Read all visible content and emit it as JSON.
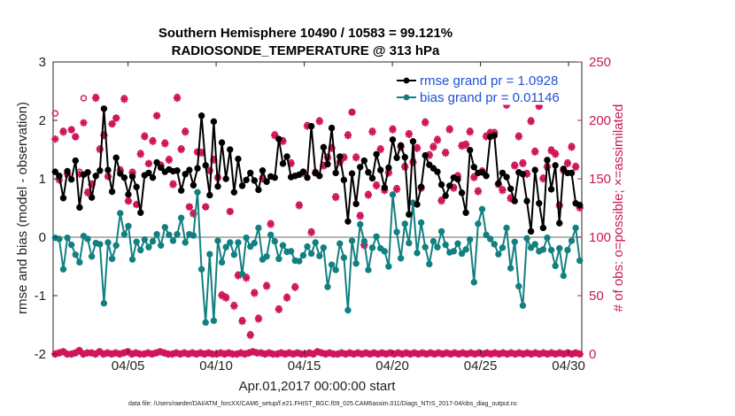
{
  "chart_data": {
    "type": "line",
    "title": [
      "Southern Hemisphere 10490 / 10583 = 99.121%",
      "RADIOSONDE_TEMPERATURE @ 313 hPa"
    ],
    "xlabel": "Apr.01,2017 00:00:00 start",
    "ylabel_left": "rmse and bias (model - observation)",
    "ylabel_right": "# of obs: o=possible; ×=assimilated",
    "footer": "data file: /Users/raeder/DAI/ATM_forcXX/CAM6_setup/f.e21.FHIST_BGC.f09_025.CAM6assim.011/Diags_NTrS_2017-04/obs_diag_output.nc",
    "x_range": [
      0.75,
      30.75
    ],
    "ylim_left": [
      -2,
      3
    ],
    "ylim_right": [
      0,
      250
    ],
    "x_ticks": [
      {
        "x": 5,
        "label": "04/05"
      },
      {
        "x": 10,
        "label": "04/10"
      },
      {
        "x": 15,
        "label": "04/15"
      },
      {
        "x": 20,
        "label": "04/20"
      },
      {
        "x": 25,
        "label": "04/25"
      },
      {
        "x": 30,
        "label": "04/30"
      }
    ],
    "y_ticks_left": [
      -2,
      -1,
      0,
      1,
      2,
      3
    ],
    "y_ticks_right": [
      0,
      50,
      100,
      150,
      200,
      250
    ],
    "colors": {
      "rmse": "#000000",
      "bias": "#128080",
      "obs": "#d0155a",
      "zero_line": "#b4b4b4",
      "legend_text": "#1f4fd9"
    },
    "legend": [
      {
        "key": "rmse",
        "label": "rmse grand pr = 1.0928"
      },
      {
        "key": "bias",
        "label": "bias grand pr = 0.01146"
      }
    ],
    "series": [
      {
        "name": "rmse",
        "values": [
          1.12,
          1.05,
          0.67,
          1.13,
          0.99,
          1.31,
          0.51,
          1.07,
          1.11,
          0.68,
          1.05,
          1.14,
          2.2,
          1.15,
          0.78,
          1.36,
          1.09,
          1.02,
          0.73,
          1.04,
          0.86,
          0.42,
          1.06,
          1.1,
          1.02,
          1.28,
          1.19,
          1.12,
          1.16,
          1.13,
          1.14,
          0.8,
          1.08,
          1.15,
          0.89,
          1.18,
          2.08,
          1.23,
          0.72,
          1.98,
          0.87,
          1.62,
          1.0,
          1.5,
          0.77,
          1.34,
          0.88,
          0.98,
          1.1,
          0.97,
          0.81,
          1.14,
          0.95,
          1.04,
          1.02,
          1.68,
          1.26,
          1.38,
          1.03,
          1.05,
          1.07,
          1.12,
          1.02,
          1.9,
          1.1,
          1.05,
          1.54,
          1.25,
          1.87,
          1.1,
          1.38,
          0.98,
          0.27,
          1.09,
          0.57,
          1.2,
          1.31,
          1.11,
          1.01,
          1.42,
          1.15,
          0.85,
          1.19,
          1.67,
          1.36,
          1.57,
          1.37,
          0.39,
          1.64,
          0.56,
          0.86,
          1.4,
          1.24,
          1.18,
          1.12,
          0.9,
          0.71,
          0.88,
          1.02,
          0.99,
          0.76,
          0.42,
          1.49,
          1.2,
          1.1,
          1.11,
          1.05,
          1.72,
          1.74,
          0.92,
          1.1,
          1.03,
          0.83,
          0.62,
          1.11,
          1.08,
          0.62,
          0.1,
          1.15,
          0.58,
          0.16,
          1.32,
          0.82,
          1.23,
          0.24,
          1.17,
          1.1,
          1.1,
          0.58,
          0.55
        ]
      },
      {
        "name": "bias",
        "values": [
          -0.01,
          -0.03,
          -0.55,
          -0.01,
          -0.13,
          -0.3,
          -0.43,
          0.02,
          -0.03,
          -0.33,
          -0.1,
          -0.12,
          -1.13,
          -0.09,
          -0.37,
          -0.14,
          0.41,
          0.05,
          0.19,
          -0.38,
          -0.08,
          -0.22,
          -0.04,
          -0.17,
          -0.07,
          0.05,
          -0.14,
          0.17,
          0.04,
          -0.06,
          0.05,
          0.33,
          -0.09,
          0.05,
          0.03,
          0.77,
          -0.55,
          -1.46,
          -0.29,
          -1.43,
          -0.06,
          -0.43,
          -0.17,
          -0.09,
          -0.3,
          -0.09,
          -0.63,
          -0.01,
          -0.16,
          -0.1,
          0.16,
          -0.38,
          -0.33,
          0.04,
          -0.07,
          -0.37,
          -0.14,
          -0.25,
          -0.24,
          -0.4,
          -0.41,
          -0.31,
          -0.16,
          -0.28,
          -0.09,
          -0.32,
          -0.18,
          -0.85,
          -0.47,
          -0.56,
          -0.11,
          -0.35,
          -1.25,
          -0.06,
          -0.45,
          0.22,
          -0.07,
          -0.56,
          -0.18,
          0.01,
          -0.19,
          -0.24,
          -0.5,
          0.73,
          0.09,
          -0.36,
          0.23,
          -0.1,
          0.59,
          -0.27,
          0.25,
          -0.17,
          -0.46,
          -0.07,
          -0.17,
          0.1,
          -0.13,
          -0.26,
          -0.24,
          -0.11,
          -0.28,
          -0.21,
          -0.04,
          -0.77,
          0.23,
          0.48,
          0.04,
          -0.03,
          -0.12,
          -0.29,
          -0.18,
          0.16,
          -0.53,
          -0.08,
          -0.84,
          -1.17,
          -0.02,
          -0.18,
          -0.12,
          -0.24,
          -0.21,
          -0.01,
          -0.22,
          -0.49,
          -0.19,
          -0.66,
          -0.22,
          -0.06,
          0.16,
          -0.4
        ]
      },
      {
        "name": "obs_assimilated",
        "values": [
          184,
          149,
          190,
          154,
          192,
          186,
          154,
          198,
          138,
          145,
          219,
          175,
          187,
          152,
          197,
          202,
          157,
          218,
          131,
          155,
          128,
          171,
          186,
          163,
          182,
          204,
          161,
          180,
          166,
          145,
          219,
          175,
          190,
          126,
          120,
          173,
          172,
          126,
          157,
          166,
          151,
          50,
          48,
          122,
          41,
          67,
          28,
          65,
          16,
          52,
          30,
          150,
          58,
          111,
          187,
          38,
          182,
          48,
          163,
          57,
          127,
          155,
          195,
          104,
          155,
          199,
          161,
          168,
          176,
          134,
          164,
          168,
          187,
          207,
          168,
          118,
          93,
          136,
          190,
          144,
          175,
          140,
          155,
          192,
          141,
          177,
          160,
          188,
          164,
          176,
          142,
          198,
          170,
          177,
          183,
          131,
          172,
          192,
          142,
          152,
          178,
          179,
          190,
          151,
          139,
          156,
          186,
          189,
          189,
          145,
          140,
          213,
          133,
          161,
          186,
          163,
          154,
          199,
          173,
          212,
          150,
          160,
          174,
          171,
          127,
          157,
          163,
          177,
          160,
          125
        ]
      },
      {
        "name": "obs_possible",
        "values": [
          206,
          152,
          191,
          155,
          192,
          186,
          156,
          219,
          139,
          146,
          220,
          176,
          188,
          152,
          197,
          202,
          158,
          219,
          131,
          156,
          128,
          172,
          187,
          163,
          183,
          204,
          162,
          181,
          167,
          146,
          220,
          176,
          191,
          126,
          121,
          173,
          173,
          126,
          157,
          167,
          151,
          51,
          49,
          122,
          42,
          68,
          29,
          66,
          17,
          53,
          31,
          151,
          59,
          112,
          188,
          39,
          183,
          49,
          164,
          58,
          128,
          156,
          196,
          105,
          156,
          200,
          162,
          169,
          177,
          135,
          165,
          169,
          188,
          207,
          169,
          119,
          94,
          137,
          191,
          145,
          176,
          141,
          156,
          193,
          142,
          178,
          161,
          189,
          165,
          177,
          143,
          199,
          171,
          178,
          184,
          132,
          173,
          193,
          143,
          153,
          179,
          180,
          191,
          152,
          140,
          157,
          187,
          190,
          190,
          146,
          141,
          214,
          134,
          162,
          187,
          164,
          155,
          200,
          174,
          213,
          151,
          161,
          175,
          172,
          128,
          158,
          164,
          178,
          161,
          126
        ]
      },
      {
        "name": "obs_bottom_assimilated",
        "values": [
          0,
          1,
          2,
          0,
          0,
          1,
          3,
          0,
          1,
          1,
          0,
          2,
          0,
          1,
          0,
          1,
          0,
          1,
          2,
          0,
          1,
          0,
          0,
          1,
          0,
          1,
          2,
          1,
          0,
          0,
          1,
          0,
          1,
          0,
          1,
          0,
          1,
          0,
          1,
          0,
          0,
          1,
          0,
          1,
          0,
          0,
          1,
          0,
          1,
          2,
          1,
          1,
          0,
          1,
          0,
          0,
          1,
          0,
          1,
          0,
          1,
          0,
          0,
          1,
          0,
          2,
          1,
          0,
          1,
          0,
          0,
          1,
          0,
          1,
          0,
          1,
          0,
          1,
          0,
          1,
          0,
          1,
          0,
          1,
          0,
          1,
          0,
          1,
          0,
          1,
          0,
          1,
          0,
          1,
          0,
          1,
          0,
          1,
          0,
          1,
          0,
          1,
          0,
          1,
          0,
          1,
          0,
          1,
          0,
          1,
          0,
          1,
          0,
          1,
          0,
          1,
          0,
          1,
          0,
          1,
          0,
          1,
          0,
          1,
          0,
          1,
          0,
          1,
          0,
          1,
          0
        ]
      }
    ]
  }
}
